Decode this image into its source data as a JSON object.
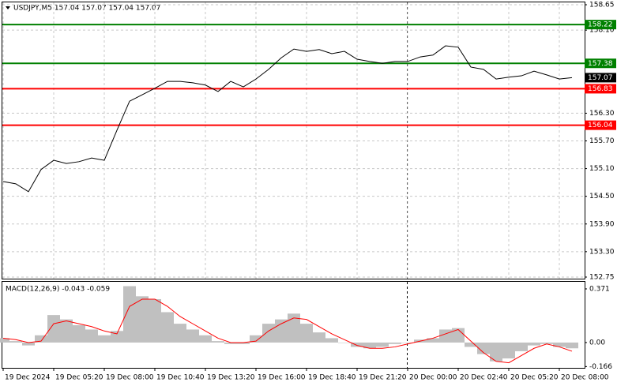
{
  "chart_data": [
    {
      "type": "line",
      "title": "USDJPY,M5  157.04 157.07 157.04 157.07",
      "color": "#000000",
      "categories": [
        "19 Dec 2024",
        null,
        null,
        null,
        "19 Dec 05:20",
        null,
        null,
        null,
        "19 Dec 08:00",
        null,
        null,
        null,
        "19 Dec 10:40",
        null,
        null,
        null,
        "19 Dec 13:20",
        null,
        null,
        null,
        "19 Dec 16:00",
        null,
        null,
        null,
        "19 Dec 18:40",
        null,
        null,
        null,
        "19 Dec 21:20",
        null,
        null,
        null,
        "20 Dec 00:00",
        null,
        null,
        null,
        "20 Dec 02:40",
        null,
        null,
        null,
        "20 Dec 05:20",
        null,
        null,
        null,
        "20 Dec 08:00",
        null
      ],
      "values": [
        154.82,
        154.77,
        154.6,
        155.08,
        155.28,
        155.21,
        155.25,
        155.33,
        155.28,
        155.93,
        156.56,
        156.7,
        156.84,
        156.99,
        156.99,
        156.96,
        156.91,
        156.77,
        156.99,
        156.87,
        157.04,
        157.25,
        157.5,
        157.69,
        157.64,
        157.68,
        157.59,
        157.64,
        157.47,
        157.42,
        157.38,
        157.42,
        157.42,
        157.52,
        157.56,
        157.76,
        157.73,
        157.3,
        157.25,
        157.04,
        157.08,
        157.11,
        157.21,
        157.13,
        157.04,
        157.07
      ],
      "ylim": [
        152.75,
        158.65
      ],
      "yticks": [
        158.65,
        {
          "value": 158.1,
          "label": "158.10"
        },
        {
          "value": 156.3,
          "label": "156.30"
        },
        {
          "value": 155.7,
          "label": "155.70"
        },
        {
          "value": 155.1,
          "label": "155.10"
        },
        {
          "value": 154.5,
          "label": "154.50"
        },
        {
          "value": 153.9,
          "label": "153.90"
        },
        {
          "value": 153.3,
          "label": "153.30"
        },
        152.75
      ],
      "levels": [
        {
          "value": 158.22,
          "color": "#008000"
        },
        {
          "value": 157.38,
          "color": "#008000"
        },
        {
          "value": 156.83,
          "color": "#ff0000"
        },
        {
          "value": 156.04,
          "color": "#ff0000"
        }
      ],
      "grid": true
    },
    {
      "type": "macd",
      "title": "MACD(12,26,9) -0.043 -0.059",
      "color": "#c0c0c0",
      "values": [
        0.03,
        0.01,
        -0.02,
        0.05,
        0.19,
        0.16,
        0.12,
        0.09,
        0.05,
        0.08,
        0.39,
        0.32,
        0.3,
        0.21,
        0.13,
        0.09,
        0.05,
        0.01,
        -0.01,
        -0.01,
        0.05,
        0.13,
        0.16,
        0.2,
        0.13,
        0.07,
        0.03,
        0.0,
        -0.03,
        -0.04,
        -0.03,
        -0.01,
        0.0,
        0.02,
        0.03,
        0.09,
        0.1,
        -0.03,
        -0.08,
        -0.13,
        -0.11,
        -0.06,
        -0.02,
        -0.01,
        -0.03,
        -0.04
      ],
      "signal": {
        "color": "#ff0000",
        "values": [
          0.03,
          0.02,
          0.0,
          0.01,
          0.13,
          0.15,
          0.13,
          0.11,
          0.08,
          0.06,
          0.25,
          0.3,
          0.3,
          0.25,
          0.18,
          0.13,
          0.08,
          0.03,
          0.0,
          0.0,
          0.01,
          0.08,
          0.13,
          0.17,
          0.16,
          0.11,
          0.06,
          0.02,
          -0.02,
          -0.04,
          -0.04,
          -0.03,
          -0.01,
          0.01,
          0.03,
          0.06,
          0.09,
          0.01,
          -0.07,
          -0.13,
          -0.14,
          -0.09,
          -0.04,
          -0.01,
          -0.03,
          -0.06
        ]
      },
      "ylim": [
        -0.175,
        0.42
      ],
      "yticks": [
        0.371,
        {
          "value": 0,
          "label": "0.00"
        },
        -0.166
      ],
      "grid": false
    }
  ]
}
